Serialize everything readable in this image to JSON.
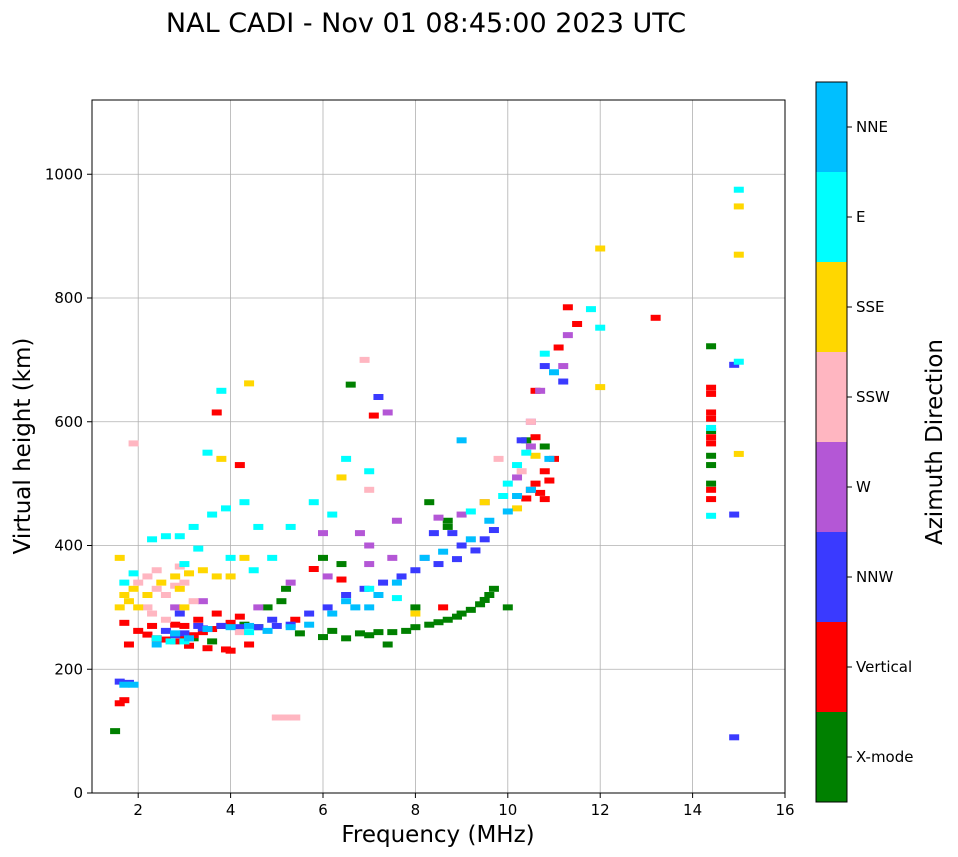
{
  "chart_data": {
    "type": "scatter",
    "title": "NAL CADI - Nov 01 08:45:00 2023 UTC",
    "xlabel": "Frequency (MHz)",
    "ylabel": "Virtual height (km)",
    "xlim": [
      1,
      16
    ],
    "ylim": [
      0,
      1120
    ],
    "xticks": [
      2,
      4,
      6,
      8,
      10,
      12,
      14,
      16
    ],
    "yticks": [
      0,
      200,
      400,
      600,
      800,
      1000
    ],
    "grid": true,
    "colorbar": {
      "label": "Azimuth Direction",
      "categories": [
        {
          "name": "X-mode",
          "color": "#008000"
        },
        {
          "name": "Vertical",
          "color": "#ff0000"
        },
        {
          "name": "NNW",
          "color": "#3a3aff"
        },
        {
          "name": "W",
          "color": "#b457d6"
        },
        {
          "name": "SSW",
          "color": "#ffb6c1"
        },
        {
          "name": "SSE",
          "color": "#ffd700"
        },
        {
          "name": "E",
          "color": "#00ffff"
        },
        {
          "name": "NNE",
          "color": "#00bfff"
        }
      ]
    },
    "series": [
      {
        "name": "X-mode",
        "points": [
          [
            1.5,
            100
          ],
          [
            5.5,
            258
          ],
          [
            6.0,
            252
          ],
          [
            6.5,
            250
          ],
          [
            7.0,
            255
          ],
          [
            7.5,
            260
          ],
          [
            8.0,
            268
          ],
          [
            8.5,
            276
          ],
          [
            8.9,
            285
          ],
          [
            9.2,
            296
          ],
          [
            9.5,
            312
          ],
          [
            9.7,
            330
          ],
          [
            6.2,
            262
          ],
          [
            6.8,
            258
          ],
          [
            7.2,
            260
          ],
          [
            7.8,
            262
          ],
          [
            8.3,
            272
          ],
          [
            8.7,
            280
          ],
          [
            9.0,
            290
          ],
          [
            9.4,
            305
          ],
          [
            9.6,
            320
          ],
          [
            8.7,
            430
          ],
          [
            8.7,
            440
          ],
          [
            8.3,
            470
          ],
          [
            10.4,
            570
          ],
          [
            10.8,
            560
          ],
          [
            14.4,
            722
          ],
          [
            14.4,
            530
          ],
          [
            14.4,
            545
          ],
          [
            14.4,
            585
          ],
          [
            14.4,
            500
          ],
          [
            6.0,
            380
          ],
          [
            6.4,
            370
          ],
          [
            5.2,
            330
          ],
          [
            4.8,
            300
          ],
          [
            4.3,
            272
          ],
          [
            4.6,
            268
          ],
          [
            3.2,
            250
          ],
          [
            3.6,
            245
          ],
          [
            7.4,
            240
          ],
          [
            8.0,
            300
          ],
          [
            10.0,
            300
          ],
          [
            5.1,
            310
          ],
          [
            6.6,
            660
          ]
        ]
      },
      {
        "name": "Vertical",
        "points": [
          [
            1.6,
            145
          ],
          [
            1.7,
            150
          ],
          [
            2.0,
            262
          ],
          [
            2.2,
            256
          ],
          [
            2.4,
            250
          ],
          [
            2.6,
            248
          ],
          [
            2.8,
            245
          ],
          [
            3.0,
            250
          ],
          [
            3.2,
            255
          ],
          [
            3.4,
            260
          ],
          [
            3.6,
            265
          ],
          [
            3.8,
            270
          ],
          [
            4.0,
            275
          ],
          [
            4.2,
            285
          ],
          [
            3.0,
            270
          ],
          [
            3.3,
            280
          ],
          [
            3.7,
            290
          ],
          [
            3.1,
            238
          ],
          [
            3.5,
            234
          ],
          [
            3.9,
            232
          ],
          [
            4.0,
            230
          ],
          [
            4.4,
            240
          ],
          [
            2.3,
            270
          ],
          [
            2.8,
            272
          ],
          [
            1.7,
            275
          ],
          [
            1.8,
            240
          ],
          [
            4.2,
            530
          ],
          [
            6.4,
            345
          ],
          [
            8.6,
            300
          ],
          [
            10.4,
            476
          ],
          [
            10.5,
            490
          ],
          [
            10.6,
            500
          ],
          [
            10.7,
            485
          ],
          [
            10.8,
            475
          ],
          [
            10.9,
            505
          ],
          [
            10.8,
            520
          ],
          [
            11.0,
            540
          ],
          [
            10.6,
            575
          ],
          [
            11.5,
            758
          ],
          [
            11.3,
            785
          ],
          [
            10.6,
            650
          ],
          [
            11.1,
            720
          ],
          [
            14.4,
            475
          ],
          [
            14.4,
            490
          ],
          [
            14.4,
            565
          ],
          [
            14.4,
            575
          ],
          [
            14.4,
            605
          ],
          [
            14.4,
            615
          ],
          [
            14.4,
            645
          ],
          [
            14.4,
            655
          ],
          [
            13.2,
            768
          ],
          [
            3.7,
            615
          ],
          [
            7.1,
            610
          ],
          [
            5.8,
            362
          ],
          [
            5.4,
            280
          ]
        ]
      },
      {
        "name": "NNW",
        "points": [
          [
            1.6,
            180
          ],
          [
            1.8,
            178
          ],
          [
            2.6,
            262
          ],
          [
            2.8,
            255
          ],
          [
            3.0,
            258
          ],
          [
            3.4,
            266
          ],
          [
            3.8,
            270
          ],
          [
            4.2,
            268
          ],
          [
            4.6,
            268
          ],
          [
            5.0,
            270
          ],
          [
            5.3,
            272
          ],
          [
            4.9,
            280
          ],
          [
            5.7,
            290
          ],
          [
            6.1,
            300
          ],
          [
            6.5,
            320
          ],
          [
            6.9,
            330
          ],
          [
            7.3,
            340
          ],
          [
            7.7,
            350
          ],
          [
            8.0,
            360
          ],
          [
            8.5,
            370
          ],
          [
            8.9,
            378
          ],
          [
            9.3,
            392
          ],
          [
            9.5,
            410
          ],
          [
            9.7,
            425
          ],
          [
            8.8,
            420
          ],
          [
            9.0,
            400
          ],
          [
            8.4,
            420
          ],
          [
            10.3,
            570
          ],
          [
            10.8,
            690
          ],
          [
            11.2,
            665
          ],
          [
            14.9,
            692
          ],
          [
            14.9,
            450
          ],
          [
            14.9,
            90
          ],
          [
            7.2,
            640
          ],
          [
            3.3,
            270
          ],
          [
            2.9,
            290
          ]
        ]
      },
      {
        "name": "W",
        "points": [
          [
            2.8,
            300
          ],
          [
            3.4,
            310
          ],
          [
            4.6,
            300
          ],
          [
            6.1,
            350
          ],
          [
            7.0,
            370
          ],
          [
            7.5,
            380
          ],
          [
            6.8,
            420
          ],
          [
            7.6,
            440
          ],
          [
            8.5,
            445
          ],
          [
            9.0,
            450
          ],
          [
            9.5,
            470
          ],
          [
            10.2,
            510
          ],
          [
            10.5,
            560
          ],
          [
            10.7,
            650
          ],
          [
            11.2,
            690
          ],
          [
            11.3,
            740
          ],
          [
            10.5,
            600
          ],
          [
            8.2,
            380
          ],
          [
            7.4,
            615
          ],
          [
            7.0,
            400
          ],
          [
            6.0,
            420
          ],
          [
            5.3,
            340
          ]
        ]
      },
      {
        "name": "SSW",
        "points": [
          [
            2.0,
            340
          ],
          [
            2.2,
            350
          ],
          [
            2.4,
            330
          ],
          [
            2.6,
            320
          ],
          [
            2.8,
            335
          ],
          [
            3.0,
            340
          ],
          [
            3.2,
            310
          ],
          [
            2.3,
            290
          ],
          [
            2.6,
            280
          ],
          [
            2.2,
            300
          ],
          [
            2.4,
            360
          ],
          [
            5.0,
            122
          ],
          [
            5.2,
            122
          ],
          [
            5.4,
            122
          ],
          [
            9.8,
            540
          ],
          [
            10.3,
            520
          ],
          [
            10.5,
            600
          ],
          [
            7.0,
            490
          ],
          [
            6.9,
            700
          ],
          [
            4.2,
            260
          ],
          [
            2.9,
            366
          ],
          [
            1.9,
            565
          ]
        ]
      },
      {
        "name": "SSE",
        "points": [
          [
            1.6,
            300
          ],
          [
            1.7,
            320
          ],
          [
            1.8,
            310
          ],
          [
            1.9,
            330
          ],
          [
            2.0,
            300
          ],
          [
            2.2,
            320
          ],
          [
            2.5,
            340
          ],
          [
            2.8,
            350
          ],
          [
            3.1,
            355
          ],
          [
            3.4,
            360
          ],
          [
            3.7,
            350
          ],
          [
            4.0,
            350
          ],
          [
            4.3,
            380
          ],
          [
            1.6,
            380
          ],
          [
            6.4,
            510
          ],
          [
            8.0,
            290
          ],
          [
            9.5,
            470
          ],
          [
            10.2,
            460
          ],
          [
            10.6,
            545
          ],
          [
            15.0,
            948
          ],
          [
            15.0,
            870
          ],
          [
            15.0,
            548
          ],
          [
            12.0,
            880
          ],
          [
            12.0,
            656
          ],
          [
            4.4,
            662
          ],
          [
            3.8,
            540
          ],
          [
            2.9,
            330
          ],
          [
            3.0,
            300
          ]
        ]
      },
      {
        "name": "E",
        "points": [
          [
            1.7,
            340
          ],
          [
            1.9,
            355
          ],
          [
            2.3,
            410
          ],
          [
            2.6,
            415
          ],
          [
            2.9,
            415
          ],
          [
            3.2,
            430
          ],
          [
            3.6,
            450
          ],
          [
            3.9,
            460
          ],
          [
            4.3,
            470
          ],
          [
            4.6,
            430
          ],
          [
            3.5,
            550
          ],
          [
            3.8,
            650
          ],
          [
            4.0,
            380
          ],
          [
            4.5,
            360
          ],
          [
            4.9,
            380
          ],
          [
            3.0,
            370
          ],
          [
            3.3,
            395
          ],
          [
            2.4,
            250
          ],
          [
            2.7,
            245
          ],
          [
            3.0,
            245
          ],
          [
            5.3,
            430
          ],
          [
            5.8,
            470
          ],
          [
            6.5,
            540
          ],
          [
            7.0,
            520
          ],
          [
            9.2,
            455
          ],
          [
            9.9,
            480
          ],
          [
            10.0,
            500
          ],
          [
            10.2,
            530
          ],
          [
            10.4,
            550
          ],
          [
            10.8,
            710
          ],
          [
            11.8,
            782
          ],
          [
            12.0,
            752
          ],
          [
            14.4,
            590
          ],
          [
            15.0,
            975
          ],
          [
            14.4,
            448
          ],
          [
            15.0,
            697
          ],
          [
            6.2,
            450
          ],
          [
            7.0,
            330
          ],
          [
            7.6,
            315
          ],
          [
            4.4,
            260
          ]
        ]
      },
      {
        "name": "NNE",
        "points": [
          [
            1.7,
            175
          ],
          [
            1.9,
            175
          ],
          [
            2.8,
            258
          ],
          [
            3.1,
            250
          ],
          [
            3.5,
            265
          ],
          [
            4.0,
            268
          ],
          [
            4.4,
            270
          ],
          [
            4.8,
            262
          ],
          [
            5.3,
            268
          ],
          [
            5.7,
            272
          ],
          [
            6.2,
            290
          ],
          [
            6.7,
            300
          ],
          [
            7.2,
            320
          ],
          [
            7.6,
            340
          ],
          [
            8.2,
            380
          ],
          [
            8.6,
            390
          ],
          [
            9.2,
            410
          ],
          [
            9.6,
            440
          ],
          [
            10.0,
            455
          ],
          [
            10.2,
            480
          ],
          [
            10.5,
            490
          ],
          [
            10.9,
            540
          ],
          [
            11.0,
            680
          ],
          [
            9.0,
            570
          ],
          [
            7.0,
            300
          ],
          [
            6.5,
            310
          ],
          [
            2.4,
            240
          ]
        ]
      }
    ]
  }
}
